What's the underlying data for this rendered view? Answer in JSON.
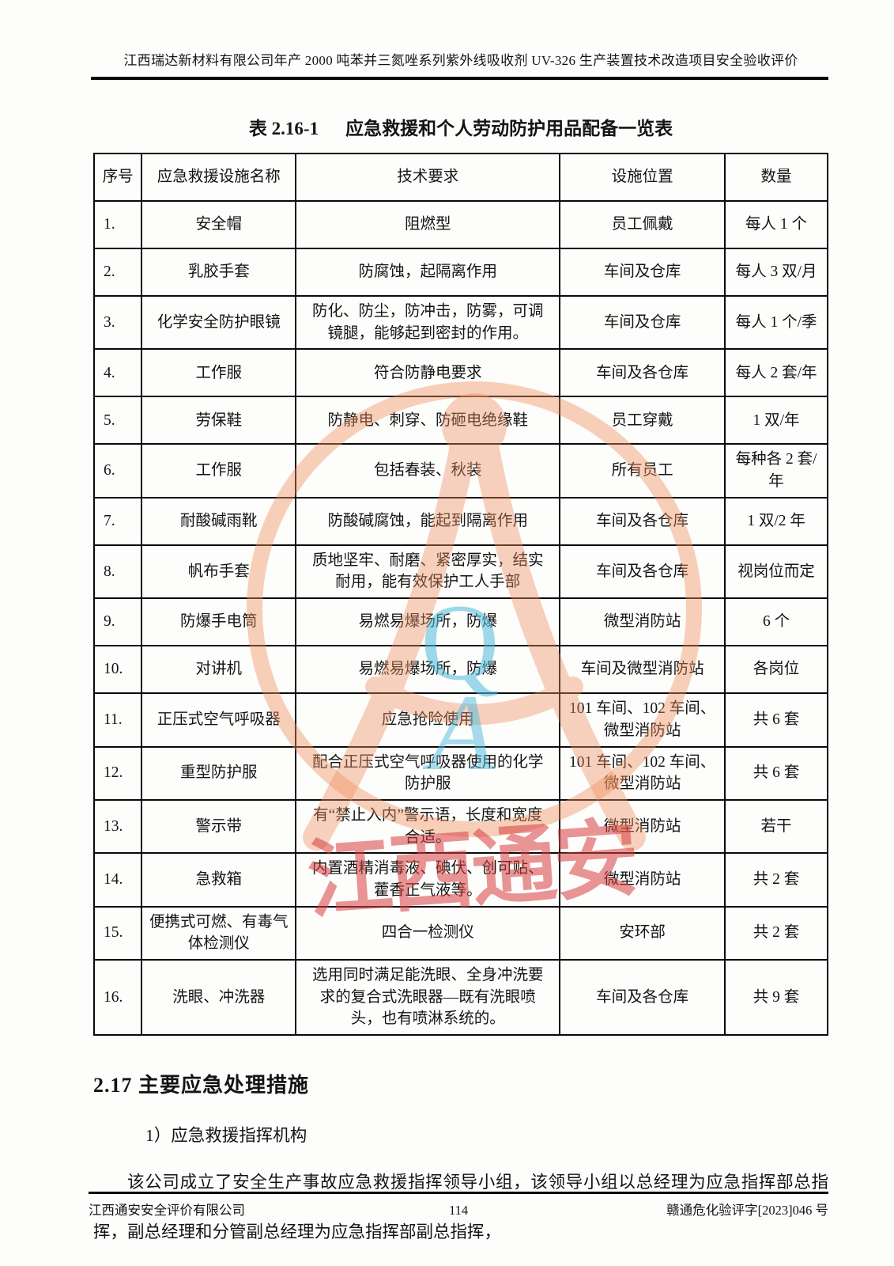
{
  "page": {
    "header_title": "江西瑞达新材料有限公司年产 2000 吨苯并三氮唑系列紫外线吸收剂 UV-326 生产装置技术改造项目安全验收评价",
    "footer_left": "江西通安安全评价有限公司",
    "footer_page": "114",
    "footer_right": "赣通危化验评字[2023]046 号"
  },
  "table": {
    "caption_label": "表 2.16-1",
    "caption_title": "应急救援和个人劳动防护用品配备一览表",
    "headers": [
      "序号",
      "应急救援设施名称",
      "技术要求",
      "设施位置",
      "数量"
    ],
    "rows": [
      [
        "1.",
        "安全帽",
        "阻燃型",
        "员工佩戴",
        "每人 1 个"
      ],
      [
        "2.",
        "乳胶手套",
        "防腐蚀，起隔离作用",
        "车间及仓库",
        "每人 3 双/月"
      ],
      [
        "3.",
        "化学安全防护眼镜",
        "防化、防尘，防冲击，防雾，可调镜腿，能够起到密封的作用。",
        "车间及仓库",
        "每人 1 个/季"
      ],
      [
        "4.",
        "工作服",
        "符合防静电要求",
        "车间及各仓库",
        "每人 2 套/年"
      ],
      [
        "5.",
        "劳保鞋",
        "防静电、刺穿、防砸电绝缘鞋",
        "员工穿戴",
        "1 双/年"
      ],
      [
        "6.",
        "工作服",
        "包括春装、秋装",
        "所有员工",
        "每种各 2 套/年"
      ],
      [
        "7.",
        "耐酸碱雨靴",
        "防酸碱腐蚀，能起到隔离作用",
        "车间及各仓库",
        "1 双/2 年"
      ],
      [
        "8.",
        "帆布手套",
        "质地坚牢、耐磨、紧密厚实，结实耐用，能有效保护工人手部",
        "车间及各仓库",
        "视岗位而定"
      ],
      [
        "9.",
        "防爆手电筒",
        "易燃易爆场所，防爆",
        "微型消防站",
        "6 个"
      ],
      [
        "10.",
        "对讲机",
        "易燃易爆场所，防爆",
        "车间及微型消防站",
        "各岗位"
      ],
      [
        "11.",
        "正压式空气呼吸器",
        "应急抢险使用",
        "101 车间、102 车间、微型消防站",
        "共 6 套"
      ],
      [
        "12.",
        "重型防护服",
        "配合正压式空气呼吸器使用的化学防护服",
        "101 车间、102 车间、微型消防站",
        "共 6 套"
      ],
      [
        "13.",
        "警示带",
        "有“禁止入内”警示语，长度和宽度合适。",
        "微型消防站",
        "若干"
      ],
      [
        "14.",
        "急救箱",
        "内置酒精消毒液、碘伏、创可贴、藿香正气液等。",
        "微型消防站",
        "共 2 套"
      ],
      [
        "15.",
        "便携式可燃、有毒气体检测仪",
        "四合一检测仪",
        "安环部",
        "共 2 套"
      ],
      [
        "16.",
        "洗眼、冲洗器",
        "选用同时满足能洗眼、全身冲洗要求的复合式洗眼器—既有洗眼喷头，也有喷淋系统的。",
        "车间及各仓库",
        "共 9 套"
      ]
    ]
  },
  "section": {
    "heading": "2.17 主要应急处理措施",
    "item1": "1）应急救援指挥机构",
    "paragraph": "该公司成立了安全生产事故应急救援指挥领导小组，该领导小组以总经理为应急指挥部总指挥，副总经理和分管副总经理为应急指挥部副总指挥，"
  },
  "watermark": {
    "red_text": "江西通安",
    "stamp_letter_q": "Q",
    "stamp_letter_a": "A",
    "stamp_orange": "#EE8F5E",
    "stamp_blue": "#4FBBDD",
    "red_color": "#D73E3E"
  }
}
